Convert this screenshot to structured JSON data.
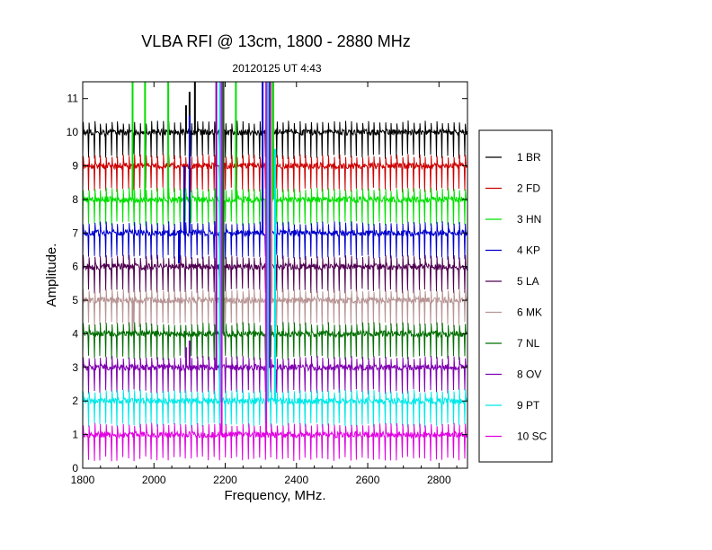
{
  "chart_data": {
    "type": "line",
    "title": "VLBA RFI @ 13cm, 1800 - 2880 MHz",
    "subtitle": "20120125   UT 4:43",
    "xlabel": "Frequency, MHz.",
    "ylabel": "Amplitude.",
    "xlim": [
      1800,
      2880
    ],
    "ylim": [
      0,
      11.5
    ],
    "xticks": [
      1800,
      2000,
      2200,
      2400,
      2600,
      2800
    ],
    "yticks": [
      0,
      1,
      2,
      3,
      4,
      5,
      6,
      7,
      8,
      9,
      10,
      11
    ],
    "grid": false,
    "legend_position": "right",
    "comb_spacing_mhz": 16,
    "series": [
      {
        "name": "1 BR",
        "color": "#000000",
        "baseline": 10.0,
        "features": [
          {
            "x": 2090,
            "y": 10.8
          },
          {
            "x": 2100,
            "y": 11.2
          },
          {
            "x": 2115,
            "y": 11.5
          },
          {
            "x": 2190,
            "y": 11.5
          },
          {
            "x": 2330,
            "y": 11.5
          }
        ]
      },
      {
        "name": "2 FD",
        "color": "#cc0000",
        "baseline": 9.0,
        "features": [
          {
            "x": 2190,
            "y": 11.5
          },
          {
            "x": 2320,
            "y": 11.5
          },
          {
            "x": 2335,
            "y": 11.5
          }
        ]
      },
      {
        "name": "3 HN",
        "color": "#00e000",
        "baseline": 8.0,
        "features": [
          {
            "x": 1940,
            "y": 11.5
          },
          {
            "x": 1975,
            "y": 11.5
          },
          {
            "x": 2040,
            "y": 11.5
          },
          {
            "x": 2230,
            "y": 11.5
          },
          {
            "x": 2335,
            "y": 11.5
          }
        ]
      },
      {
        "name": "4 KP",
        "color": "#0000cc",
        "baseline": 7.0,
        "features": [
          {
            "x": 2070,
            "y": 6.1
          },
          {
            "x": 2085,
            "y": 9.0
          },
          {
            "x": 2100,
            "y": 10.5
          },
          {
            "x": 2190,
            "y": 11.5
          },
          {
            "x": 2305,
            "y": 11.5
          }
        ]
      },
      {
        "name": "5 LA",
        "color": "#500050",
        "baseline": 6.0,
        "features": [
          {
            "x": 2195,
            "y": 11.5
          },
          {
            "x": 2325,
            "y": 11.5
          }
        ]
      },
      {
        "name": "6 MK",
        "color": "#b89494",
        "baseline": 5.0,
        "features": [
          {
            "x": 1940,
            "y": 4.0
          },
          {
            "x": 1960,
            "y": 4.2
          },
          {
            "x": 2190,
            "y": 11.5
          },
          {
            "x": 2330,
            "y": 11.5
          }
        ]
      },
      {
        "name": "7 NL",
        "color": "#006e00",
        "baseline": 4.0,
        "features": [
          {
            "x": 2195,
            "y": 11.5
          },
          {
            "x": 2320,
            "y": 11.5
          }
        ]
      },
      {
        "name": "8 OV",
        "color": "#8000b0",
        "baseline": 3.0,
        "features": [
          {
            "x": 2090,
            "y": 3.6
          },
          {
            "x": 2100,
            "y": 3.8
          },
          {
            "x": 2175,
            "y": 11.5
          },
          {
            "x": 2190,
            "y": 11.5
          },
          {
            "x": 2325,
            "y": 11.5
          }
        ]
      },
      {
        "name": "9 PT",
        "color": "#00e8e8",
        "baseline": 2.0,
        "features": [
          {
            "x": 2185,
            "y": 11.5
          },
          {
            "x": 2320,
            "y": 11.5
          },
          {
            "x": 2340,
            "y": 9.5
          }
        ]
      },
      {
        "name": "10 SC",
        "color": "#e000e0",
        "baseline": 1.0,
        "features": [
          {
            "x": 2190,
            "y": 11.5
          },
          {
            "x": 2315,
            "y": 11.5
          }
        ]
      }
    ]
  }
}
